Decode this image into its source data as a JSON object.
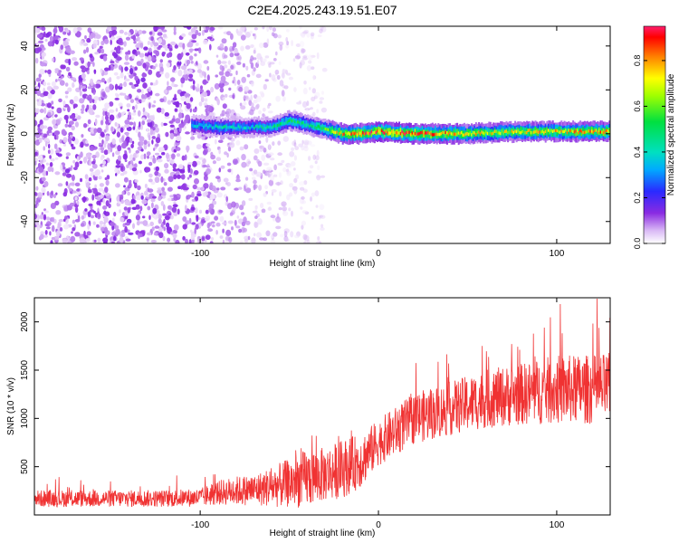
{
  "title": "C2E4.2025.243.19.51.E07",
  "chart_data": [
    {
      "type": "heatmap",
      "title": "C2E4.2025.243.19.51.E07",
      "xlabel": "Height of straight line (km)",
      "ylabel": "Frequency (Hz)",
      "xlim": [
        -193,
        130
      ],
      "ylim": [
        -50,
        49
      ],
      "xticks": [
        -100,
        0,
        100
      ],
      "xtick_labels": [
        "-100",
        "0",
        "100"
      ],
      "yticks": [
        -40,
        -20,
        0,
        20,
        40
      ],
      "ytick_labels": [
        "-40",
        "-20",
        "0",
        "20",
        "40"
      ],
      "ridge": {
        "description": "narrow high-amplitude band near 0 Hz",
        "x": [
          -105,
          -90,
          -75,
          -60,
          -50,
          -40,
          -30,
          -20,
          -10,
          0,
          20,
          50,
          80,
          110,
          130
        ],
        "center_hz": [
          4,
          3,
          3,
          3,
          6,
          4,
          2,
          0,
          0,
          1,
          0,
          0,
          1,
          1,
          1
        ],
        "amplitude": [
          0.35,
          0.45,
          0.4,
          0.45,
          0.55,
          0.5,
          0.6,
          0.8,
          0.85,
          0.9,
          0.9,
          0.75,
          0.75,
          0.8,
          0.85
        ]
      },
      "noise_region": {
        "x_from": -193,
        "x_to": -60,
        "amplitude": 0.1
      },
      "colorbar": {
        "label": "Normalized spectral amplitude",
        "range": [
          0.0,
          0.95
        ],
        "ticks": [
          0.0,
          0.2,
          0.4,
          0.6,
          0.8
        ],
        "tick_labels": [
          "0.0",
          "0.2",
          "0.4",
          "0.6",
          "0.8"
        ]
      },
      "colors": {
        "low": "#8a2be2",
        "mid": "#00cc66",
        "high": "#ff2020"
      }
    },
    {
      "type": "line",
      "xlabel": "Height of straight line (km)",
      "ylabel": "SNR (10 * v/v)",
      "xlim": [
        -193,
        130
      ],
      "ylim": [
        0,
        2250
      ],
      "xticks": [
        -100,
        0,
        100
      ],
      "xtick_labels": [
        "-100",
        "0",
        "100"
      ],
      "yticks": [
        500,
        1000,
        1500,
        2000
      ],
      "ytick_labels": [
        "500",
        "1000",
        "1500",
        "2000"
      ],
      "series": [
        {
          "name": "SNR",
          "color": "#f03232",
          "x": [
            -193,
            -180,
            -160,
            -140,
            -120,
            -100,
            -90,
            -80,
            -70,
            -60,
            -50,
            -40,
            -30,
            -20,
            -10,
            0,
            10,
            20,
            40,
            60,
            80,
            100,
            120,
            130
          ],
          "mean": [
            170,
            170,
            170,
            170,
            170,
            180,
            230,
            250,
            260,
            290,
            330,
            380,
            420,
            480,
            560,
            750,
            870,
            1000,
            1100,
            1200,
            1250,
            1300,
            1300,
            1320
          ],
          "spread": [
            110,
            110,
            110,
            110,
            110,
            120,
            160,
            190,
            200,
            260,
            320,
            380,
            350,
            380,
            350,
            300,
            320,
            330,
            350,
            380,
            400,
            450,
            450,
            450
          ]
        }
      ]
    }
  ]
}
